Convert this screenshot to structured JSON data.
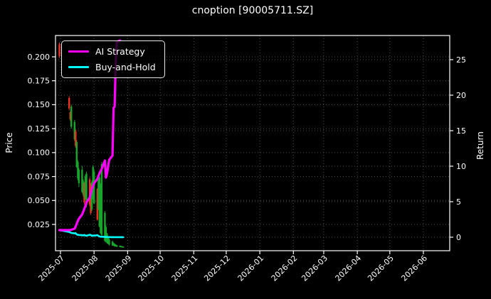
{
  "figure": {
    "title": "cnoption [90005711.SZ]"
  },
  "legend": [
    {
      "label": "AI Strategy",
      "color": "#ff00ff"
    },
    {
      "label": "Buy-and-Hold",
      "color": "#00ffff"
    }
  ],
  "chart_data": {
    "type": "candlestick+line",
    "title": "cnoption [90005711.SZ]",
    "background": "#000000",
    "grid": {
      "on": true,
      "color": "#4d4d4d",
      "style": "dotted"
    },
    "left_axis": {
      "label": "Price",
      "ticks": [
        0.2,
        0.175,
        0.15,
        0.125,
        0.1,
        0.075,
        0.05,
        0.025
      ],
      "range": [
        -0.002,
        0.2222
      ]
    },
    "right_axis": {
      "label": "Return",
      "ticks": [
        0,
        5,
        10,
        15,
        20,
        25
      ],
      "range": [
        -1.9,
        28.4
      ]
    },
    "x_axis": {
      "ticks": [
        "2025-07",
        "2025-08",
        "2025-09",
        "2025-10",
        "2025-11",
        "2025-12",
        "2026-01",
        "2026-02",
        "2026-03",
        "2026-04",
        "2026-05",
        "2026-06"
      ],
      "range": [
        "2025-06-26",
        "2026-06-25"
      ]
    },
    "candle_colors": {
      "up": "#ef3024",
      "down": "#18a52c"
    },
    "candles": [
      [
        "2025-06-30",
        0.201,
        0.215,
        0.199,
        0.213
      ],
      [
        "2025-07-09",
        0.146,
        0.159,
        0.144,
        0.157
      ],
      [
        "2025-07-10",
        0.135,
        0.143,
        0.133,
        0.142
      ],
      [
        "2025-07-11",
        0.148,
        0.15,
        0.125,
        0.127
      ],
      [
        "2025-07-14",
        0.132,
        0.134,
        0.112,
        0.114
      ],
      [
        "2025-07-15",
        0.107,
        0.124,
        0.105,
        0.122
      ],
      [
        "2025-07-16",
        0.111,
        0.113,
        0.084,
        0.085
      ],
      [
        "2025-07-17",
        0.09,
        0.092,
        0.071,
        0.073
      ],
      [
        "2025-07-18",
        0.082,
        0.084,
        0.064,
        0.068
      ],
      [
        "2025-07-21",
        0.082,
        0.086,
        0.058,
        0.059
      ],
      [
        "2025-07-22",
        0.07,
        0.072,
        0.054,
        0.056
      ],
      [
        "2025-07-23",
        0.048,
        0.069,
        0.046,
        0.068
      ],
      [
        "2025-07-24",
        0.075,
        0.077,
        0.051,
        0.052
      ],
      [
        "2025-07-25",
        0.078,
        0.08,
        0.043,
        0.045
      ],
      [
        "2025-07-28",
        0.046,
        0.074,
        0.044,
        0.072
      ],
      [
        "2025-07-29",
        0.037,
        0.068,
        0.035,
        0.066
      ],
      [
        "2025-07-30",
        0.069,
        0.071,
        0.039,
        0.041
      ],
      [
        "2025-07-31",
        0.085,
        0.087,
        0.051,
        0.052
      ],
      [
        "2025-08-01",
        0.08,
        0.082,
        0.046,
        0.047
      ],
      [
        "2025-08-04",
        0.03,
        0.063,
        0.029,
        0.062
      ],
      [
        "2025-08-05",
        0.073,
        0.075,
        0.04,
        0.041
      ],
      [
        "2025-08-06",
        0.074,
        0.076,
        0.022,
        0.023
      ],
      [
        "2025-08-07",
        0.066,
        0.068,
        0.015,
        0.016
      ],
      [
        "2025-08-08",
        0.088,
        0.09,
        0.013,
        0.014
      ],
      [
        "2025-08-11",
        0.037,
        0.039,
        0.007,
        0.008
      ],
      [
        "2025-08-12",
        0.022,
        0.024,
        0.006,
        0.007
      ],
      [
        "2025-08-13",
        0.015,
        0.016,
        0.005,
        0.006
      ],
      [
        "2025-08-14",
        0.011,
        0.012,
        0.004,
        0.005
      ],
      [
        "2025-08-15",
        0.009,
        0.01,
        0.003,
        0.004
      ],
      [
        "2025-08-18",
        0.007,
        0.008,
        0.0028,
        0.003
      ],
      [
        "2025-08-19",
        0.0055,
        0.006,
        0.0025,
        0.0028
      ],
      [
        "2025-08-20",
        0.0045,
        0.005,
        0.002,
        0.0022
      ],
      [
        "2025-08-21",
        0.0038,
        0.0042,
        0.0018,
        0.002
      ],
      [
        "2025-08-22",
        0.0032,
        0.0036,
        0.0015,
        0.0017
      ],
      [
        "2025-08-25",
        0.0028,
        0.003,
        0.0012,
        0.0014
      ],
      [
        "2025-08-26",
        0.0024,
        0.0026,
        0.001,
        0.0012
      ],
      [
        "2025-08-27",
        0.002,
        0.0022,
        0.0008,
        0.001
      ],
      [
        "2025-08-28",
        0.0018,
        0.002,
        0.0007,
        0.0009
      ]
    ],
    "series": [
      {
        "name": "AI Strategy",
        "color": "#ff00ff",
        "axis": "right",
        "width": 3.2,
        "points": [
          [
            "2025-06-30",
            1.0
          ],
          [
            "2025-07-09",
            1.0
          ],
          [
            "2025-07-10",
            1.0
          ],
          [
            "2025-07-11",
            1.05
          ],
          [
            "2025-07-14",
            1.2
          ],
          [
            "2025-07-15",
            1.5
          ],
          [
            "2025-07-16",
            1.9
          ],
          [
            "2025-07-17",
            2.3
          ],
          [
            "2025-07-18",
            2.6
          ],
          [
            "2025-07-21",
            3.2
          ],
          [
            "2025-07-22",
            3.6
          ],
          [
            "2025-07-23",
            4.0
          ],
          [
            "2025-07-24",
            4.4
          ],
          [
            "2025-07-25",
            4.9
          ],
          [
            "2025-07-28",
            5.6
          ],
          [
            "2025-07-29",
            6.2
          ],
          [
            "2025-07-30",
            6.8
          ],
          [
            "2025-07-31",
            7.2
          ],
          [
            "2025-08-01",
            7.6
          ],
          [
            "2025-08-04",
            8.2
          ],
          [
            "2025-08-05",
            8.6
          ],
          [
            "2025-08-06",
            9.0
          ],
          [
            "2025-08-07",
            9.3
          ],
          [
            "2025-08-08",
            9.6
          ],
          [
            "2025-08-11",
            10.8
          ],
          [
            "2025-08-12",
            8.4
          ],
          [
            "2025-08-13",
            9.0
          ],
          [
            "2025-08-14",
            10.0
          ],
          [
            "2025-08-15",
            10.9
          ],
          [
            "2025-08-18",
            11.5
          ],
          [
            "2025-08-19",
            18.2
          ],
          [
            "2025-08-20",
            18.4
          ],
          [
            "2025-08-21",
            24.5
          ],
          [
            "2025-08-22",
            27.5
          ],
          [
            "2025-08-25",
            27.7
          ]
        ]
      },
      {
        "name": "Buy-and-Hold",
        "color": "#00ffff",
        "axis": "right",
        "width": 2.6,
        "points": [
          [
            "2025-06-30",
            1.0
          ],
          [
            "2025-07-09",
            0.74
          ],
          [
            "2025-07-10",
            0.67
          ],
          [
            "2025-07-11",
            0.6
          ],
          [
            "2025-07-14",
            0.54
          ],
          [
            "2025-07-15",
            0.57
          ],
          [
            "2025-07-16",
            0.4
          ],
          [
            "2025-07-17",
            0.34
          ],
          [
            "2025-07-18",
            0.32
          ],
          [
            "2025-07-21",
            0.28
          ],
          [
            "2025-07-22",
            0.26
          ],
          [
            "2025-07-23",
            0.32
          ],
          [
            "2025-07-24",
            0.24
          ],
          [
            "2025-07-25",
            0.21
          ],
          [
            "2025-07-28",
            0.34
          ],
          [
            "2025-07-29",
            0.31
          ],
          [
            "2025-07-30",
            0.19
          ],
          [
            "2025-07-31",
            0.24
          ],
          [
            "2025-08-01",
            0.22
          ],
          [
            "2025-08-04",
            0.29
          ],
          [
            "2025-08-05",
            0.19
          ],
          [
            "2025-08-06",
            0.11
          ],
          [
            "2025-08-07",
            0.07
          ],
          [
            "2025-08-08",
            0.066
          ],
          [
            "2025-08-11",
            0.035
          ],
          [
            "2025-08-12",
            0.03
          ],
          [
            "2025-08-13",
            0.026
          ],
          [
            "2025-08-14",
            0.021
          ],
          [
            "2025-08-15",
            0.017
          ],
          [
            "2025-08-18",
            0.014
          ],
          [
            "2025-08-19",
            0.013
          ],
          [
            "2025-08-20",
            0.01
          ],
          [
            "2025-08-21",
            0.009
          ],
          [
            "2025-08-22",
            0.008
          ],
          [
            "2025-08-25",
            0.007
          ],
          [
            "2025-08-26",
            0.006
          ],
          [
            "2025-08-27",
            0.005
          ],
          [
            "2025-08-28",
            0.004
          ]
        ]
      }
    ]
  }
}
